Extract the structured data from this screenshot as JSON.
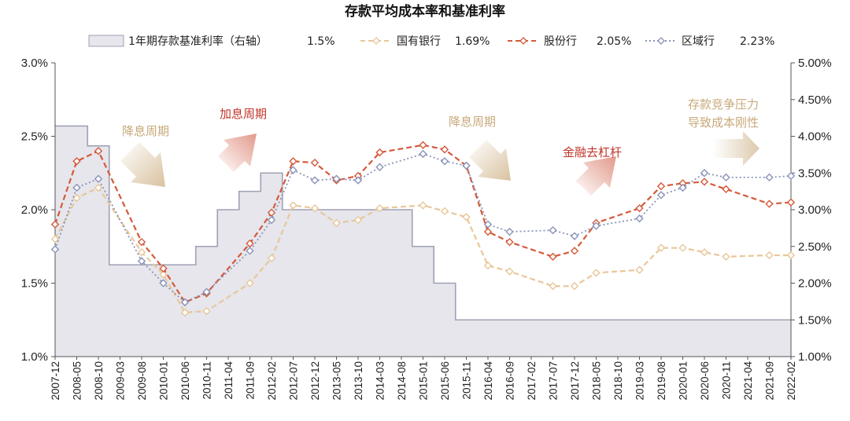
{
  "chart_data": {
    "type": "line",
    "title": "存款平均成本率和基准利率",
    "x": [
      "2007-12",
      "2008-05",
      "2008-10",
      "2009-03",
      "2009-08",
      "2010-01",
      "2010-06",
      "2010-11",
      "2011-04",
      "2011-09",
      "2012-02",
      "2012-07",
      "2012-12",
      "2013-05",
      "2013-10",
      "2014-03",
      "2014-08",
      "2015-01",
      "2015-06",
      "2015-11",
      "2016-04",
      "2016-09",
      "2017-02",
      "2017-07",
      "2017-12",
      "2018-05",
      "2018-10",
      "2019-03",
      "2019-08",
      "2020-01",
      "2020-06",
      "2020-11",
      "2021-04",
      "2021-09",
      "2022-02"
    ],
    "y_left": {
      "ylim": [
        1.0,
        3.0
      ],
      "ticks": [
        "1.0%",
        "1.5%",
        "2.0%",
        "2.5%",
        "3.0%"
      ]
    },
    "y_right": {
      "ylim": [
        1.0,
        5.0
      ],
      "ticks": [
        "1.00%",
        "1.50%",
        "2.00%",
        "2.50%",
        "3.00%",
        "3.50%",
        "4.00%",
        "4.50%",
        "5.00%"
      ]
    },
    "series": [
      {
        "name": "国有银行",
        "axis": "left",
        "color": "#e8c79a",
        "style": "dash",
        "legend_value": "1.69%",
        "values": [
          1.8,
          2.08,
          2.15,
          null,
          1.71,
          1.56,
          1.3,
          1.31,
          null,
          1.5,
          1.67,
          2.03,
          2.01,
          1.91,
          1.93,
          2.01,
          null,
          2.03,
          1.99,
          1.95,
          1.62,
          1.58,
          null,
          1.48,
          1.48,
          1.57,
          null,
          1.59,
          1.74,
          1.74,
          1.71,
          1.68,
          null,
          1.69,
          1.69
        ]
      },
      {
        "name": "股份行",
        "axis": "left",
        "color": "#d45a3a",
        "style": "dash",
        "legend_value": "2.05%",
        "values": [
          1.9,
          2.33,
          2.4,
          null,
          1.78,
          1.6,
          1.37,
          1.43,
          null,
          1.77,
          1.98,
          2.33,
          2.32,
          2.2,
          2.23,
          2.39,
          null,
          2.44,
          2.41,
          2.3,
          1.85,
          1.78,
          null,
          1.68,
          1.72,
          1.91,
          null,
          2.01,
          2.16,
          2.18,
          2.19,
          2.14,
          null,
          2.04,
          2.05
        ]
      },
      {
        "name": "区域行",
        "axis": "left",
        "color": "#8a93b8",
        "style": "dot",
        "legend_value": "2.23%",
        "values": [
          1.73,
          2.15,
          2.21,
          null,
          1.65,
          1.5,
          1.37,
          1.44,
          null,
          1.72,
          1.93,
          2.27,
          2.2,
          2.21,
          2.2,
          2.29,
          null,
          2.38,
          2.33,
          2.3,
          1.9,
          1.85,
          null,
          1.86,
          1.82,
          1.89,
          null,
          1.94,
          2.1,
          2.15,
          2.25,
          2.22,
          null,
          2.22,
          2.23
        ]
      },
      {
        "name": "1年期存款基准利率（右轴）",
        "axis": "right",
        "type": "area-step",
        "color": "#e6e6ec",
        "stroke": "#9fa1b6",
        "legend_value": "1.5%",
        "values": [
          4.14,
          4.14,
          3.87,
          2.25,
          2.25,
          2.25,
          2.25,
          2.5,
          3.0,
          3.25,
          3.5,
          3.0,
          3.0,
          3.0,
          3.0,
          3.0,
          3.0,
          2.5,
          2.0,
          1.5,
          1.5,
          1.5,
          1.5,
          1.5,
          1.5,
          1.5,
          1.5,
          1.5,
          1.5,
          1.5,
          1.5,
          1.5,
          1.5,
          1.5,
          1.5
        ]
      }
    ],
    "annotations": [
      {
        "text": "降息周期",
        "color": "#c8a97a"
      },
      {
        "text": "加息周期",
        "color": "#c0352b"
      },
      {
        "text": "降息周期",
        "color": "#c8a97a"
      },
      {
        "text": "金融去杠杆",
        "color": "#c0352b"
      },
      {
        "text": "存款竞争压力",
        "color": "#c8a97a"
      },
      {
        "text": "导致成本刚性",
        "color": "#c8a97a"
      }
    ],
    "legend_position": "top",
    "grid": false
  }
}
